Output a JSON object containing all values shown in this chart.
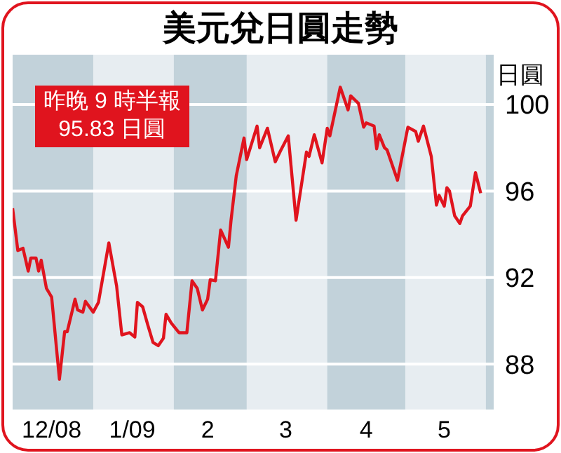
{
  "chart_data": {
    "type": "line",
    "title": "美元兌日圓走勢",
    "ylabel": "日圓",
    "annotations": [
      "昨晚 9 時半報\n95.83 日圓"
    ],
    "x": [
      "2008-12-01",
      "2008-12-03",
      "2008-12-05",
      "2008-12-07",
      "2008-12-08",
      "2008-12-10",
      "2008-12-11",
      "2008-12-12",
      "2008-12-14",
      "2008-12-16",
      "2008-12-19",
      "2008-12-21",
      "2008-12-22",
      "2008-12-25",
      "2008-12-26",
      "2008-12-28",
      "2008-12-29",
      "2009-01-01",
      "2009-01-03",
      "2009-01-07",
      "2009-01-10",
      "2009-01-12",
      "2009-01-15",
      "2009-01-17",
      "2009-01-18",
      "2009-01-20",
      "2009-01-22",
      "2009-01-24",
      "2009-01-26",
      "2009-01-28",
      "2009-01-29",
      "2009-01-31",
      "2009-02-03",
      "2009-02-06",
      "2009-02-08",
      "2009-02-10",
      "2009-02-12",
      "2009-02-14",
      "2009-02-15",
      "2009-02-17",
      "2009-02-19",
      "2009-02-22",
      "2009-02-23",
      "2009-02-25",
      "2009-02-28",
      "2009-03-01",
      "2009-03-05",
      "2009-03-06",
      "2009-03-09",
      "2009-03-12",
      "2009-03-14",
      "2009-03-17",
      "2009-03-20",
      "2009-03-24",
      "2009-03-25",
      "2009-03-27",
      "2009-03-30",
      "2009-04-01",
      "2009-04-02",
      "2009-04-06",
      "2009-04-09",
      "2009-04-10",
      "2009-04-13",
      "2009-04-15",
      "2009-04-16",
      "2009-04-19",
      "2009-04-20",
      "2009-04-21",
      "2009-04-23",
      "2009-04-24",
      "2009-04-28",
      "2009-05-02",
      "2009-05-05",
      "2009-05-06",
      "2009-05-08",
      "2009-05-11",
      "2009-05-13",
      "2009-05-14",
      "2009-05-16",
      "2009-05-17",
      "2009-05-18",
      "2009-05-20",
      "2009-05-22",
      "2009-05-23",
      "2009-05-26",
      "2009-05-28",
      "2009-05-30"
    ],
    "series": [
      {
        "color": "#e0141e",
        "values": [
          95.2,
          93.25,
          93.35,
          92.3,
          92.9,
          92.9,
          92.3,
          92.8,
          91.5,
          91.1,
          87.3,
          89.5,
          89.5,
          91.0,
          90.5,
          90.4,
          90.9,
          90.4,
          90.85,
          93.6,
          91.6,
          89.35,
          89.45,
          89.25,
          90.85,
          90.65,
          89.8,
          89.0,
          88.85,
          89.2,
          90.3,
          89.9,
          89.45,
          89.45,
          91.85,
          91.5,
          90.5,
          91.0,
          91.9,
          91.85,
          94.2,
          93.4,
          94.65,
          96.7,
          98.45,
          97.45,
          99.0,
          98.0,
          98.9,
          97.35,
          97.85,
          98.55,
          94.65,
          97.8,
          97.6,
          98.6,
          97.3,
          98.9,
          98.55,
          100.8,
          99.75,
          100.4,
          100.05,
          98.95,
          99.15,
          99.0,
          97.95,
          98.6,
          98.0,
          97.9,
          96.5,
          98.95,
          98.75,
          98.3,
          99.0,
          97.6,
          95.35,
          95.8,
          95.3,
          96.15,
          96.0,
          94.85,
          94.5,
          94.85,
          95.3,
          96.85,
          95.9
        ]
      }
    ],
    "xlim": [
      "2008-12-01",
      "2009-06-04"
    ],
    "xticks": [
      {
        "value": "2008-12-16",
        "label": "12/08"
      },
      {
        "value": "2009-01-16",
        "label": "1/09"
      },
      {
        "value": "2009-02-14",
        "label": "2"
      },
      {
        "value": "2009-03-16",
        "label": "3"
      },
      {
        "value": "2009-04-16",
        "label": "4"
      },
      {
        "value": "2009-05-16",
        "label": "5"
      }
    ],
    "ylim": [
      85.9,
      102.3
    ],
    "yticks": [
      88,
      92,
      96,
      100
    ],
    "bands": [
      {
        "axis": "x",
        "from": "2008-12-01",
        "to": "2009-01-01",
        "color": "#c2d2da"
      },
      {
        "axis": "x",
        "from": "2009-02-01",
        "to": "2009-03-01",
        "color": "#c2d2da"
      },
      {
        "axis": "x",
        "from": "2009-04-01",
        "to": "2009-05-01",
        "color": "#c2d2da"
      },
      {
        "axis": "x",
        "from": "2009-06-01",
        "to": "2009-06-04",
        "color": "#c2d2da"
      }
    ],
    "grid": "y",
    "marker": "none",
    "line_style": "solid"
  }
}
